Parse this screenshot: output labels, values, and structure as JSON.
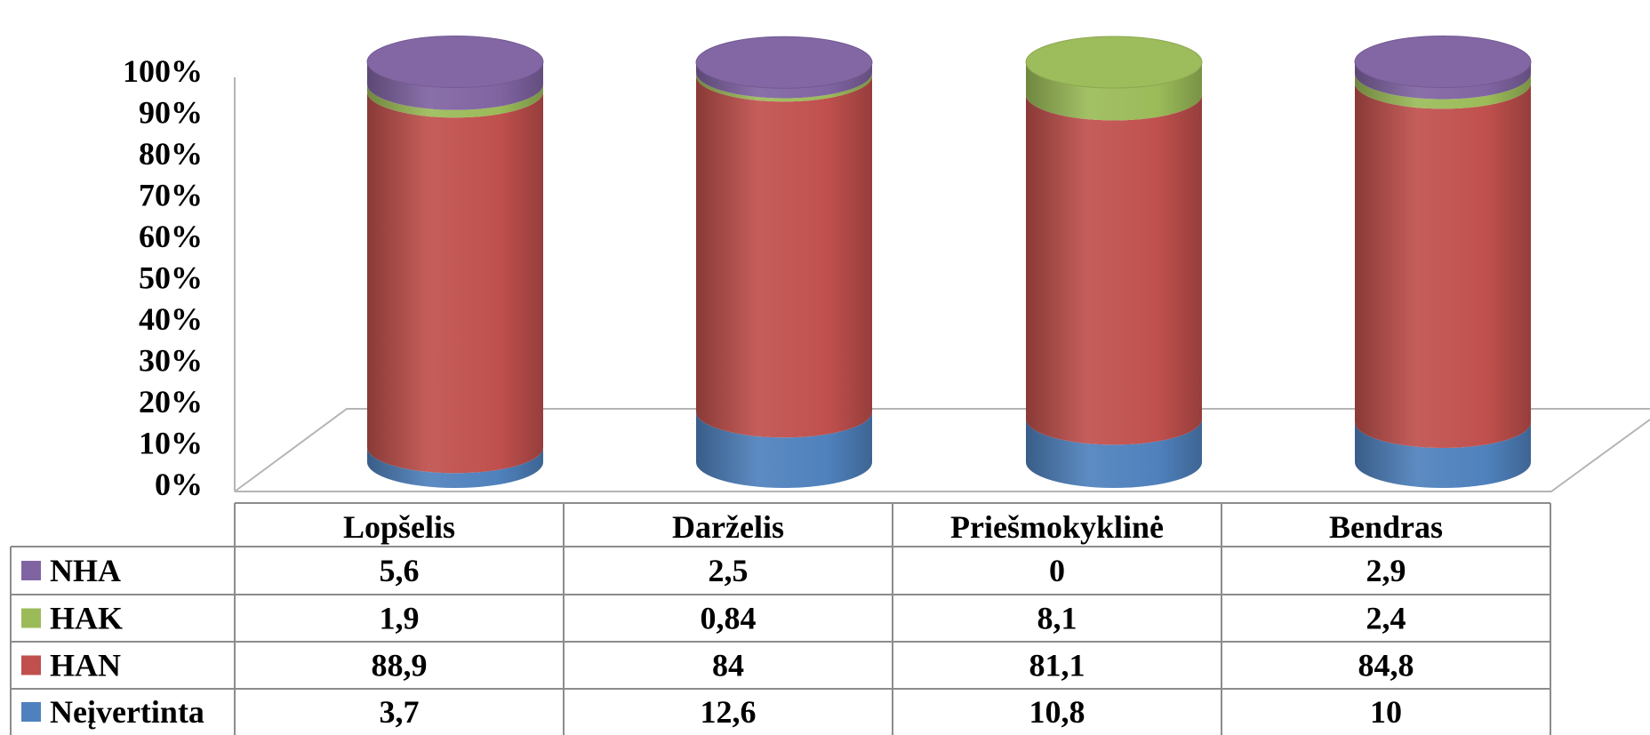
{
  "chart_data": {
    "type": "bar",
    "stacked": true,
    "style": "3d-cylinder-100-percent",
    "categories": [
      "Lopšelis",
      "Darželis",
      "Priešmokyklinė",
      "Bendras"
    ],
    "y_ticks": [
      "0%",
      "10%",
      "20%",
      "30%",
      "40%",
      "50%",
      "60%",
      "70%",
      "80%",
      "90%",
      "100%"
    ],
    "ylim": [
      0,
      100
    ],
    "series": [
      {
        "name": "Neįvertinta",
        "color": "#4f81bd",
        "values": [
          3.7,
          12.6,
          10.8,
          10
        ],
        "labels": [
          "3,7",
          "12,6",
          "10,8",
          "10"
        ]
      },
      {
        "name": "HAN",
        "color": "#c0504d",
        "values": [
          88.9,
          84,
          81.1,
          84.8
        ],
        "labels": [
          "88,9",
          "84",
          "81,1",
          "84,8"
        ]
      },
      {
        "name": "HAK",
        "color": "#9bbb59",
        "values": [
          1.9,
          0.84,
          8.1,
          2.4
        ],
        "labels": [
          "1,9",
          "0,84",
          "8,1",
          "2,4"
        ]
      },
      {
        "name": "NHA",
        "color": "#8064a2",
        "values": [
          5.6,
          2.5,
          0,
          2.9
        ],
        "labels": [
          "5,6",
          "2,5",
          "0",
          "2,9"
        ]
      }
    ],
    "table_row_order": [
      "NHA",
      "HAK",
      "HAN",
      "Neįvertinta"
    ],
    "grid": false,
    "legend": "data-table-left"
  }
}
